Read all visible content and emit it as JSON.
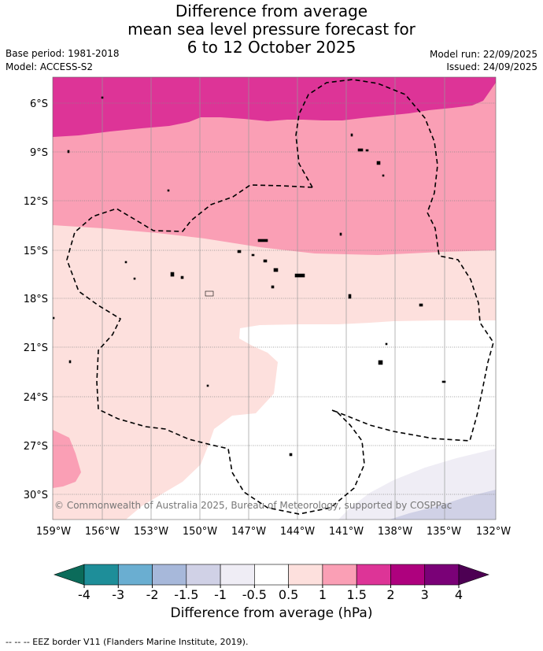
{
  "title": {
    "line1": "Difference from average",
    "line2": "mean sea level pressure forecast for",
    "line3": "6 to 12 October 2025"
  },
  "meta": {
    "base_period": "Base period: 1981-2018",
    "model": "Model: ACCESS-S2",
    "model_run": "Model run: 22/09/2025",
    "issued": "Issued: 24/09/2025"
  },
  "map": {
    "lat_labels": [
      "6°S",
      "9°S",
      "12°S",
      "15°S",
      "18°S",
      "21°S",
      "24°S",
      "27°S",
      "30°S"
    ],
    "lon_labels": [
      "159°W",
      "156°W",
      "153°W",
      "150°W",
      "147°W",
      "144°W",
      "141°W",
      "138°W",
      "135°W",
      "132°W"
    ],
    "copyright": "© Commonwealth of Australia 2025, Bureau of Meteorology, supported by COSPPac"
  },
  "colorbar": {
    "tick_labels": [
      "-4",
      "-3",
      "-2",
      "-1.5",
      "-1",
      "-0.5",
      "0.5",
      "1",
      "1.5",
      "2",
      "3",
      "4"
    ],
    "colors": [
      "#1e8e99",
      "#6aaed1",
      "#a7b8da",
      "#d0d1e6",
      "#efedf5",
      "#ffffff",
      "#fde0dd",
      "#fa9fb5",
      "#dd3497",
      "#ae017e",
      "#7a0177"
    ],
    "under_color": "#0b6b5a",
    "over_color": "#4d0053",
    "label": "Difference from average (hPa)"
  },
  "legend": {
    "eez": "--  --  -- EEZ border V11 (Flanders Marine Institute, 2019)."
  }
}
